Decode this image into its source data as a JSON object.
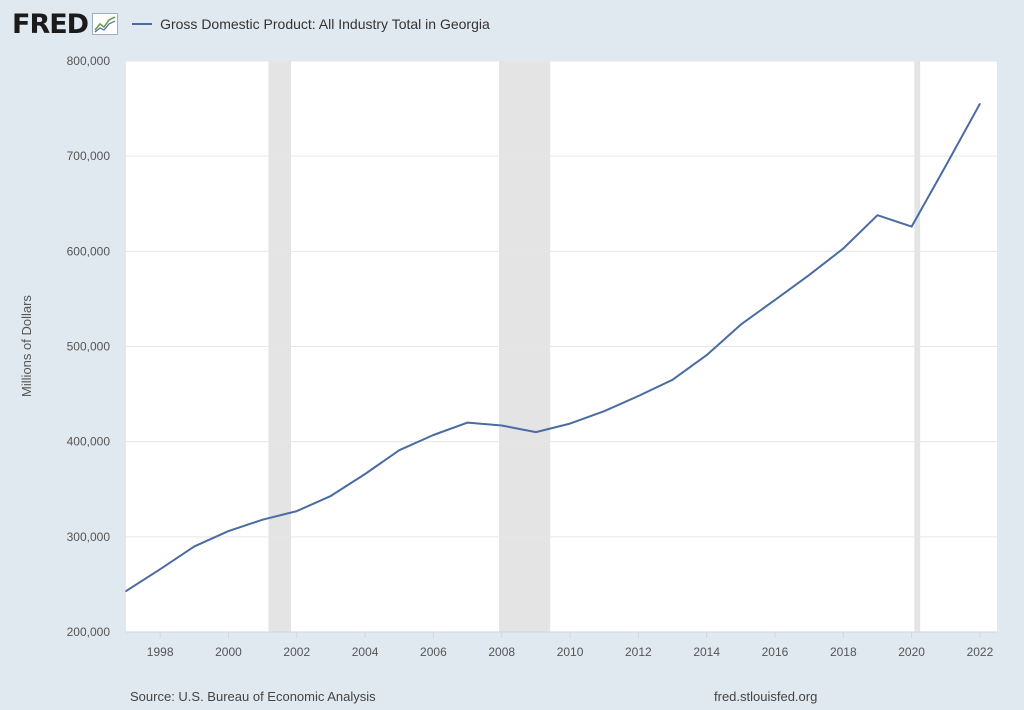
{
  "header": {
    "logo": "FRED",
    "legend_label": "Gross Domestic Product: All Industry Total in Georgia"
  },
  "colors": {
    "series": "#4a6ba3",
    "background": "#e1e9f0",
    "plot_bg": "#ffffff",
    "recession": "#e4e4e4",
    "grid": "#e6e6e6"
  },
  "footer": {
    "source": "Source: U.S. Bureau of Economic Analysis",
    "url": "fred.stlouisfed.org"
  },
  "chart_data": {
    "type": "line",
    "ylabel": "Millions of Dollars",
    "xlabel": "",
    "xlim": [
      1997,
      2022.5
    ],
    "ylim": [
      200000,
      800000
    ],
    "y_ticks": [
      200000,
      300000,
      400000,
      500000,
      600000,
      700000,
      800000
    ],
    "y_tick_labels": [
      "200,000",
      "300,000",
      "400,000",
      "500,000",
      "600,000",
      "700,000",
      "800,000"
    ],
    "x_ticks": [
      1998,
      2000,
      2002,
      2004,
      2006,
      2008,
      2010,
      2012,
      2014,
      2016,
      2018,
      2020,
      2022
    ],
    "x_tick_labels": [
      "1998",
      "2000",
      "2002",
      "2004",
      "2006",
      "2008",
      "2010",
      "2012",
      "2014",
      "2016",
      "2018",
      "2020",
      "2022"
    ],
    "grid": true,
    "legend": "top-left",
    "recessions": [
      [
        2001.17,
        2001.83
      ],
      [
        2007.92,
        2009.42
      ],
      [
        2020.08,
        2020.25
      ]
    ],
    "series": [
      {
        "name": "Gross Domestic Product: All Industry Total in Georgia",
        "x": [
          1997,
          1998,
          1999,
          2000,
          2001,
          2002,
          2003,
          2004,
          2005,
          2006,
          2007,
          2008,
          2009,
          2010,
          2011,
          2012,
          2013,
          2014,
          2015,
          2016,
          2017,
          2018,
          2019,
          2020,
          2021,
          2022
        ],
        "values": [
          243000,
          266000,
          290000,
          306000,
          318000,
          327000,
          343000,
          366000,
          391000,
          407000,
          420000,
          417000,
          410000,
          419000,
          432000,
          448000,
          465000,
          491000,
          523000,
          549000,
          575000,
          603000,
          638000,
          626000,
          690000,
          755000
        ]
      }
    ]
  }
}
